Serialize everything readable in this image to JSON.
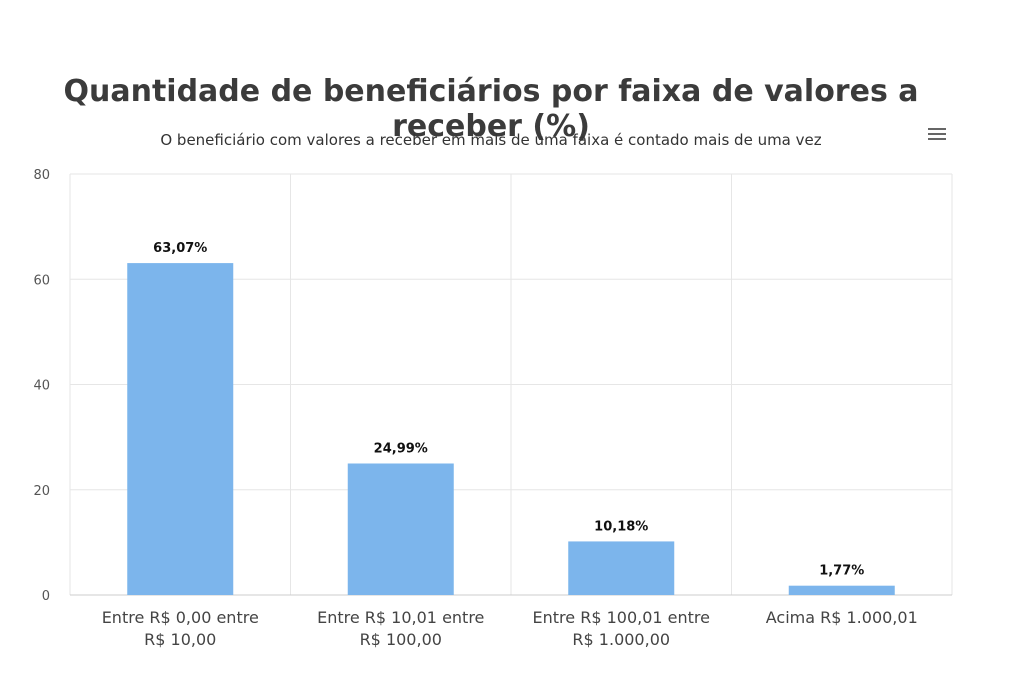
{
  "chart_data": {
    "type": "bar",
    "title": "Quantidade de beneficiários por faixa de valores a receber (%)",
    "subtitle": "O beneficiário com valores a receber em mais de uma faixa é contado mais de uma vez",
    "categories": [
      [
        "Entre R$ 0,00 entre",
        "R$ 10,00"
      ],
      [
        "Entre R$ 10,01 entre",
        "R$ 100,00"
      ],
      [
        "Entre R$ 100,01 entre",
        "R$ 1.000,00"
      ],
      [
        "Acima R$ 1.000,01"
      ]
    ],
    "values": [
      63.07,
      24.99,
      10.18,
      1.77
    ],
    "data_labels": [
      "63,07%",
      "24,99%",
      "10,18%",
      "1,77%"
    ],
    "ylim": [
      0,
      80
    ],
    "yticks": [
      0,
      20,
      40,
      60,
      80
    ],
    "grid": true,
    "bar_color": "#7cb5ec"
  },
  "menu": {
    "icon": "hamburger-menu-icon"
  }
}
